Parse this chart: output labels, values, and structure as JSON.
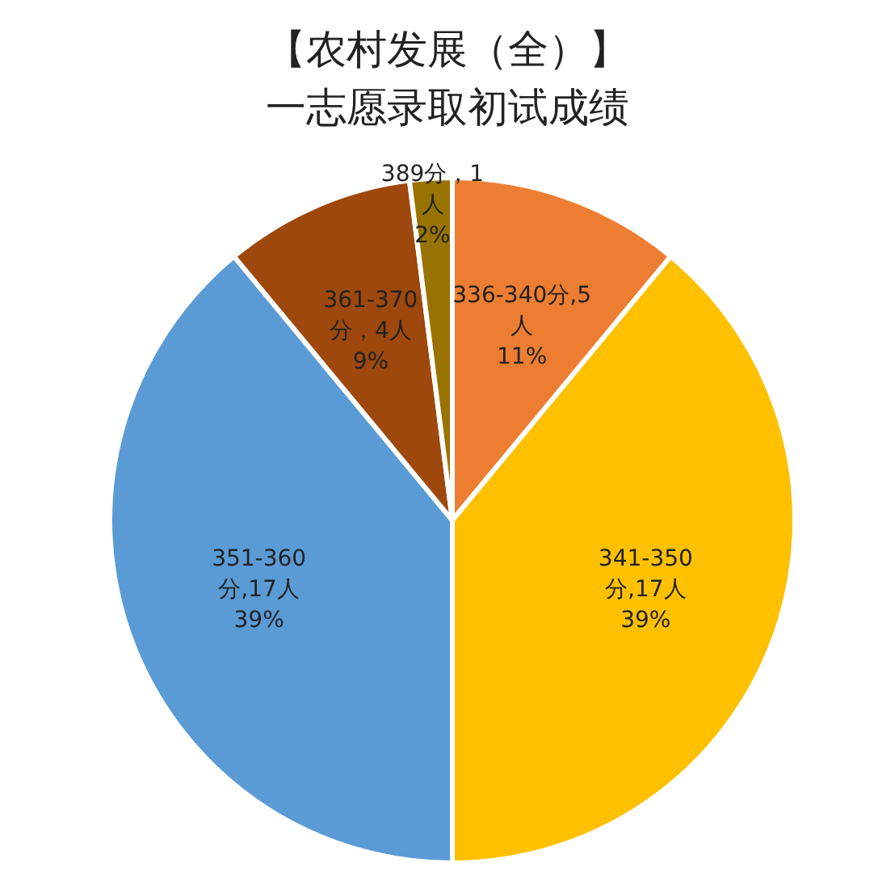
{
  "chart_data": {
    "type": "pie",
    "title": "【农村发展（全）】",
    "subtitle": "一志愿录取初试成绩",
    "categories": [
      "336-340分,5人",
      "341-350分,17人",
      "351-360分,17人",
      "361-370分，4人",
      "389分，1人"
    ],
    "values": [
      11,
      39,
      39,
      9,
      2
    ],
    "value_labels": [
      "11%",
      "39%",
      "39%",
      "9%",
      "2%"
    ],
    "colors": [
      "#ed7d31",
      "#ffc000",
      "#5b9bd5",
      "#9e480e",
      "#997300"
    ]
  }
}
